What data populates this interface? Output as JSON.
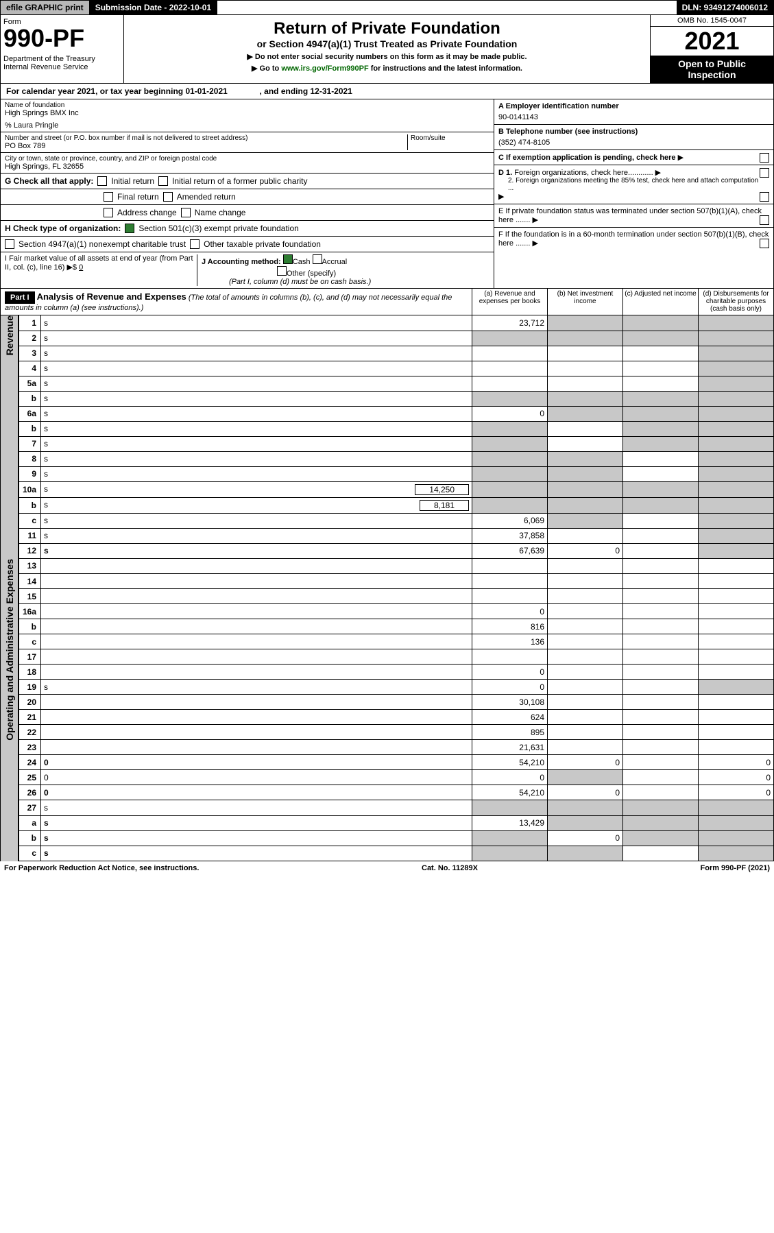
{
  "topbar": {
    "efile": "efile GRAPHIC print",
    "submission": "Submission Date - 2022-10-01",
    "dln": "DLN: 93491274006012"
  },
  "header": {
    "form_label": "Form",
    "form_number": "990-PF",
    "dept": "Department of the Treasury\nInternal Revenue Service",
    "title": "Return of Private Foundation",
    "subtitle": "or Section 4947(a)(1) Trust Treated as Private Foundation",
    "note1": "▶ Do not enter social security numbers on this form as it may be made public.",
    "note2_pre": "▶ Go to ",
    "note2_link": "www.irs.gov/Form990PF",
    "note2_post": " for instructions and the latest information.",
    "omb": "OMB No. 1545-0047",
    "year": "2021",
    "open": "Open to Public Inspection"
  },
  "cal": "For calendar year 2021, or tax year beginning 01-01-2021              , and ending 12-31-2021",
  "id": {
    "name_lbl": "Name of foundation",
    "name": "High Springs BMX Inc",
    "care": "% Laura Pringle",
    "addr_lbl": "Number and street (or P.O. box number if mail is not delivered to street address)",
    "addr": "PO Box 789",
    "room_lbl": "Room/suite",
    "city_lbl": "City or town, state or province, country, and ZIP or foreign postal code",
    "city": "High Springs, FL  32655",
    "a_lbl": "A Employer identification number",
    "a_val": "90-0141143",
    "b_lbl": "B Telephone number (see instructions)",
    "b_val": "(352) 474-8105",
    "c_lbl": "C If exemption application is pending, check here",
    "d1": "D 1. Foreign organizations, check here............",
    "d2": "2. Foreign organizations meeting the 85% test, check here and attach computation ...",
    "e": "E  If private foundation status was terminated under section 507(b)(1)(A), check here .......",
    "f": "F  If the foundation is in a 60-month termination under section 507(b)(1)(B), check here .......",
    "g_lbl": "G Check all that apply:",
    "g_initial": "Initial return",
    "g_initial_former": "Initial return of a former public charity",
    "g_final": "Final return",
    "g_amended": "Amended return",
    "g_addr": "Address change",
    "g_name": "Name change",
    "h_lbl": "H Check type of organization:",
    "h_501c3": "Section 501(c)(3) exempt private foundation",
    "h_4947": "Section 4947(a)(1) nonexempt charitable trust",
    "h_other": "Other taxable private foundation",
    "i_lbl": "I Fair market value of all assets at end of year (from Part II, col. (c), line 16) ▶$ ",
    "i_val": "0",
    "j_lbl": "J Accounting method:",
    "j_cash": "Cash",
    "j_accrual": "Accrual",
    "j_other": "Other (specify)",
    "j_note": "(Part I, column (d) must be on cash basis.)"
  },
  "part1": {
    "label": "Part I",
    "title": "Analysis of Revenue and Expenses",
    "title_note": "(The total of amounts in columns (b), (c), and (d) may not necessarily equal the amounts in column (a) (see instructions).)",
    "col_a": "(a)  Revenue and expenses per books",
    "col_b": "(b)  Net investment income",
    "col_c": "(c)  Adjusted net income",
    "col_d": "(d)  Disbursements for charitable purposes (cash basis only)"
  },
  "sections": {
    "revenue": "Revenue",
    "expenses": "Operating and Administrative Expenses"
  },
  "rows": [
    {
      "n": "1",
      "d": "s",
      "a": "23,712",
      "b": "s",
      "c": "s"
    },
    {
      "n": "2",
      "d": "s",
      "a": "s",
      "b": "s",
      "c": "s"
    },
    {
      "n": "3",
      "d": "s",
      "a": "",
      "b": "",
      "c": ""
    },
    {
      "n": "4",
      "d": "s",
      "a": "",
      "b": "",
      "c": ""
    },
    {
      "n": "5a",
      "d": "s",
      "a": "",
      "b": "",
      "c": ""
    },
    {
      "n": "b",
      "d": "s",
      "a": "s",
      "b": "s",
      "c": "s"
    },
    {
      "n": "6a",
      "d": "s",
      "a": "0",
      "b": "s",
      "c": "s"
    },
    {
      "n": "b",
      "d": "s",
      "a": "s",
      "b": "",
      "c": "s"
    },
    {
      "n": "7",
      "d": "s",
      "a": "s",
      "b": "",
      "c": "s"
    },
    {
      "n": "8",
      "d": "s",
      "a": "s",
      "b": "s",
      "c": ""
    },
    {
      "n": "9",
      "d": "s",
      "a": "s",
      "b": "s",
      "c": ""
    },
    {
      "n": "10a",
      "d": "s",
      "inline": "14,250",
      "a": "s",
      "b": "s",
      "c": "s"
    },
    {
      "n": "b",
      "d": "s",
      "inline": "8,181",
      "a": "s",
      "b": "s",
      "c": "s"
    },
    {
      "n": "c",
      "d": "s",
      "a": "6,069",
      "b": "s",
      "c": ""
    },
    {
      "n": "11",
      "d": "s",
      "a": "37,858",
      "b": "",
      "c": ""
    },
    {
      "n": "12",
      "d": "s",
      "bold": true,
      "a": "67,639",
      "b": "0",
      "c": ""
    }
  ],
  "exp_rows": [
    {
      "n": "13",
      "d": "",
      "a": "",
      "b": "",
      "c": ""
    },
    {
      "n": "14",
      "d": "",
      "a": "",
      "b": "",
      "c": ""
    },
    {
      "n": "15",
      "d": "",
      "a": "",
      "b": "",
      "c": ""
    },
    {
      "n": "16a",
      "d": "",
      "a": "0",
      "b": "",
      "c": ""
    },
    {
      "n": "b",
      "d": "",
      "a": "816",
      "b": "",
      "c": ""
    },
    {
      "n": "c",
      "d": "",
      "a": "136",
      "b": "",
      "c": ""
    },
    {
      "n": "17",
      "d": "",
      "a": "",
      "b": "",
      "c": ""
    },
    {
      "n": "18",
      "d": "",
      "a": "0",
      "b": "",
      "c": ""
    },
    {
      "n": "19",
      "d": "s",
      "a": "0",
      "b": "",
      "c": ""
    },
    {
      "n": "20",
      "d": "",
      "a": "30,108",
      "b": "",
      "c": ""
    },
    {
      "n": "21",
      "d": "",
      "a": "624",
      "b": "",
      "c": ""
    },
    {
      "n": "22",
      "d": "",
      "a": "895",
      "b": "",
      "c": ""
    },
    {
      "n": "23",
      "d": "",
      "a": "21,631",
      "b": "",
      "c": ""
    },
    {
      "n": "24",
      "d": "0",
      "bold": true,
      "a": "54,210",
      "b": "0",
      "c": ""
    },
    {
      "n": "25",
      "d": "0",
      "a": "0",
      "b": "s",
      "c": ""
    },
    {
      "n": "26",
      "d": "0",
      "bold": true,
      "a": "54,210",
      "b": "0",
      "c": ""
    }
  ],
  "bottom_rows": [
    {
      "n": "27",
      "d": "s",
      "a": "s",
      "b": "s",
      "c": "s"
    },
    {
      "n": "a",
      "d": "s",
      "bold": true,
      "a": "13,429",
      "b": "s",
      "c": "s"
    },
    {
      "n": "b",
      "d": "s",
      "bold": true,
      "a": "s",
      "b": "0",
      "c": "s"
    },
    {
      "n": "c",
      "d": "s",
      "bold": true,
      "a": "s",
      "b": "s",
      "c": ""
    }
  ],
  "footer": {
    "left": "For Paperwork Reduction Act Notice, see instructions.",
    "mid": "Cat. No. 11289X",
    "right": "Form 990-PF (2021)"
  }
}
